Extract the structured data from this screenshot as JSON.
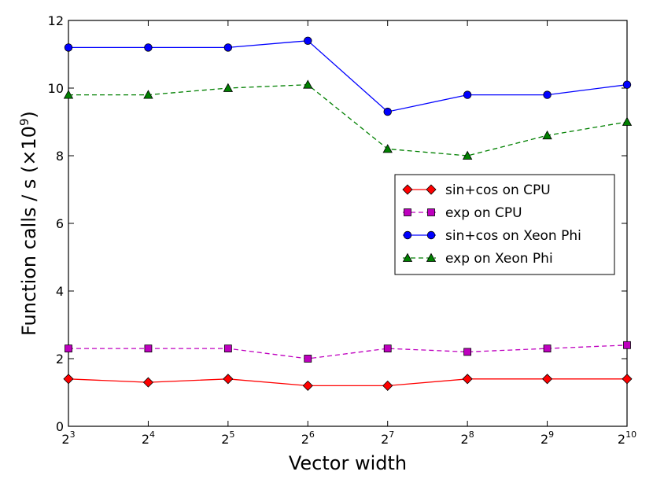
{
  "chart_data": {
    "type": "line",
    "title": "",
    "xlabel": "Vector width",
    "ylabel": "Function calls / s",
    "ylabel_unit_prefix": "(×10",
    "ylabel_unit_exp": "9",
    "ylabel_unit_suffix": ")",
    "x_exponents": [
      3,
      4,
      5,
      6,
      7,
      8,
      9,
      10
    ],
    "x_tick_base": "2",
    "x_tick_exps": [
      "3",
      "4",
      "5",
      "6",
      "7",
      "8",
      "9",
      "10"
    ],
    "ylim": [
      0,
      12
    ],
    "y_ticks": [
      "0",
      "2",
      "4",
      "6",
      "8",
      "10",
      "12"
    ],
    "grid": false,
    "legend_position": "center-right",
    "series": [
      {
        "name": "sin+cos on CPU",
        "color": "#ff0000",
        "marker": "diamond",
        "dashed": false,
        "values": [
          1.4,
          1.3,
          1.4,
          1.2,
          1.2,
          1.4,
          1.4,
          1.4
        ]
      },
      {
        "name": "exp on CPU",
        "color": "#bf00bf",
        "marker": "square",
        "dashed": true,
        "values": [
          2.3,
          2.3,
          2.3,
          2.0,
          2.3,
          2.2,
          2.3,
          2.4
        ]
      },
      {
        "name": "sin+cos on Xeon Phi",
        "color": "#0000ff",
        "marker": "circle",
        "dashed": false,
        "values": [
          11.2,
          11.2,
          11.2,
          11.4,
          9.3,
          9.8,
          9.8,
          10.1
        ]
      },
      {
        "name": "exp on Xeon Phi",
        "color": "#008000",
        "marker": "triangle",
        "dashed": true,
        "values": [
          9.8,
          9.8,
          10.0,
          10.1,
          8.2,
          8.0,
          8.6,
          9.0
        ]
      }
    ]
  }
}
